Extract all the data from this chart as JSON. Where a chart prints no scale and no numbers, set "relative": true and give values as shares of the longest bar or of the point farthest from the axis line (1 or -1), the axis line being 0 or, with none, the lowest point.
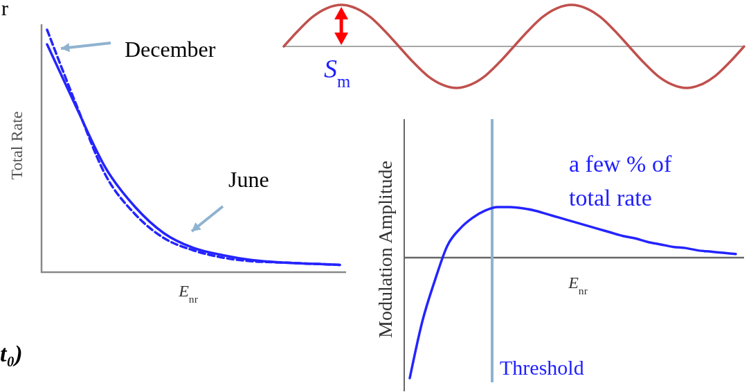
{
  "chart_data": [
    {
      "type": "line",
      "relative": true,
      "ylabel": "Total Rate",
      "xlabel": "E$_{nr}$",
      "categories": [
        null,
        null,
        null,
        null,
        null,
        null,
        null,
        null,
        null,
        null,
        null
      ],
      "series": [
        {
          "name": "December",
          "color": "#2424ff",
          "line_style": "dashed",
          "values": [
            1.0,
            0.69,
            0.4,
            0.24,
            0.14,
            0.09,
            0.06,
            0.045,
            0.04,
            0.035,
            0.03
          ]
        },
        {
          "name": "June",
          "color": "#2424ff",
          "line_style": "solid",
          "values": [
            0.94,
            0.68,
            0.43,
            0.27,
            0.16,
            0.1,
            0.07,
            0.05,
            0.04,
            0.035,
            0.03
          ]
        }
      ],
      "annotations": [
        "r",
        "t₀)"
      ]
    },
    {
      "type": "line",
      "relative": true,
      "categories": [
        null,
        null,
        null,
        null,
        null,
        null,
        null,
        null,
        null,
        null,
        null,
        null,
        null,
        null,
        null,
        null,
        null,
        null,
        null,
        null,
        null,
        null,
        null,
        null,
        null,
        null,
        null,
        null,
        null,
        null,
        null,
        null,
        null
      ],
      "series": [
        {
          "color": "#c0504d",
          "values": [
            0,
            0.38,
            0.71,
            0.92,
            1,
            0.92,
            0.71,
            0.38,
            0,
            -0.38,
            -0.71,
            -0.92,
            -1,
            -0.92,
            -0.71,
            -0.38,
            0,
            0.38,
            0.71,
            0.92,
            1,
            0.92,
            0.71,
            0.38,
            0,
            -0.38,
            -0.71,
            -0.92,
            -1,
            -0.92,
            -0.71,
            -0.38,
            0
          ]
        }
      ],
      "annotations": [
        "S$_{m}$"
      ]
    },
    {
      "type": "line",
      "relative": true,
      "ylabel": "Modulation Amplitude",
      "xlabel": "E$_{nr}$",
      "categories": [
        null,
        null,
        null,
        null,
        null,
        null,
        null,
        null,
        null,
        null,
        null,
        null,
        null,
        null,
        null,
        null,
        null,
        null,
        null,
        null,
        null,
        null,
        null,
        null,
        null,
        null,
        null
      ],
      "series": [
        {
          "color": "#2424ff",
          "values": [
            -1.0,
            -0.53,
            -0.19,
            0.1,
            0.24,
            0.33,
            0.39,
            0.42,
            0.42,
            0.41,
            0.39,
            0.36,
            0.33,
            0.3,
            0.27,
            0.24,
            0.21,
            0.18,
            0.16,
            0.13,
            0.11,
            0.09,
            0.08,
            0.06,
            0.05,
            0.04,
            0.03
          ]
        }
      ],
      "annotations": [
        "a few % of total rate",
        "Threshold"
      ]
    }
  ]
}
